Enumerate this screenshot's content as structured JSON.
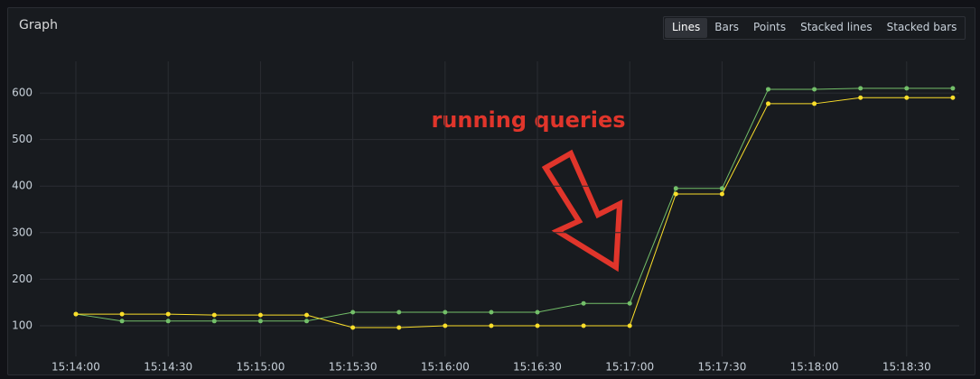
{
  "panel": {
    "title": "Graph",
    "buttons": [
      "Lines",
      "Bars",
      "Points",
      "Stacked lines",
      "Stacked bars"
    ],
    "active_button": "Lines"
  },
  "chart_data": {
    "type": "line",
    "annotation": "running queries",
    "categories": [
      "15:14:00",
      null,
      "15:14:30",
      null,
      "15:15:00",
      null,
      "15:15:30",
      null,
      "15:16:00",
      null,
      "15:16:30",
      null,
      "15:17:00",
      null,
      "15:17:30",
      null,
      "15:18:00",
      null,
      "15:18:30",
      null
    ],
    "series": [
      {
        "color": "#73bf69",
        "values": [
          125,
          110,
          110,
          110,
          110,
          110,
          129,
          129,
          129,
          129,
          129,
          148,
          148,
          395,
          395,
          608,
          608,
          610,
          610,
          610
        ]
      },
      {
        "color": "#fade2a",
        "values": [
          125,
          125,
          125,
          123,
          123,
          123,
          96,
          96,
          100,
          100,
          100,
          100,
          100,
          383,
          383,
          577,
          577,
          590,
          590,
          590
        ]
      }
    ],
    "ylim": [
      34,
      668
    ],
    "yticks": [
      100,
      200,
      300,
      400,
      500,
      600
    ],
    "grid": true
  }
}
